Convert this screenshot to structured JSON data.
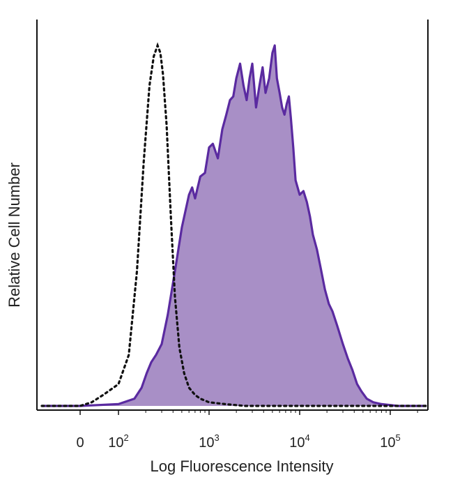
{
  "chart_data": {
    "type": "area",
    "title": "",
    "xlabel": "Log Fluorescence Intensity",
    "ylabel": "Relative Cell Number",
    "x_scale": "biexponential",
    "xlim": [
      -100,
      300000
    ],
    "ylim": [
      0,
      100
    ],
    "ticks": [
      {
        "value": 0,
        "base": "0",
        "exp": ""
      },
      {
        "value": 100,
        "base": "10",
        "exp": "2"
      },
      {
        "value": 1000,
        "base": "10",
        "exp": "3"
      },
      {
        "value": 10000,
        "base": "10",
        "exp": "4"
      },
      {
        "value": 100000,
        "base": "10",
        "exp": "5"
      }
    ],
    "grid": false,
    "series": [
      {
        "style": "dotted-outline",
        "color": "#111111",
        "x": [
          -100,
          0,
          30,
          60,
          100,
          130,
          160,
          190,
          220,
          245,
          270,
          290,
          310,
          340,
          380,
          420,
          470,
          530,
          600,
          700,
          800,
          1000,
          1500,
          2500,
          5000,
          10000,
          50000,
          300000
        ],
        "y": [
          0,
          0,
          1,
          3,
          6,
          14,
          37,
          67,
          88,
          96,
          99,
          97,
          91,
          77,
          51,
          30,
          16,
          9,
          5,
          3,
          2,
          1,
          0.5,
          0,
          0,
          0,
          0,
          0
        ]
      },
      {
        "style": "filled",
        "color": "#5a2aa0",
        "fill": "#a88fc6",
        "x": [
          -100,
          0,
          100,
          150,
          180,
          205,
          230,
          260,
          300,
          350,
          420,
          500,
          600,
          650,
          700,
          800,
          900,
          1000,
          1100,
          1250,
          1400,
          1550,
          1700,
          1850,
          2000,
          2200,
          2400,
          2600,
          2800,
          3000,
          3300,
          3600,
          3900,
          4200,
          4600,
          5000,
          5300,
          5600,
          6000,
          6400,
          6800,
          7200,
          7600,
          8000,
          8500,
          9000,
          10000,
          11000,
          12000,
          13000,
          14000,
          15500,
          17000,
          19000,
          21000,
          23000,
          26000,
          30000,
          34000,
          38000,
          43000,
          48000,
          55000,
          65000,
          80000,
          120000,
          300000
        ],
        "y": [
          0,
          0,
          0.5,
          2,
          5,
          9,
          12,
          14,
          17,
          25,
          37,
          49,
          58,
          60,
          57,
          63,
          64,
          71,
          72,
          68,
          76,
          80,
          84,
          85,
          90,
          94,
          88,
          84,
          90,
          94,
          82,
          88,
          93,
          86,
          90,
          97,
          99,
          90,
          86,
          82,
          80,
          83,
          85,
          79,
          71,
          62,
          58,
          59,
          56,
          52,
          47,
          43,
          38,
          32,
          28,
          26,
          22,
          17,
          13,
          10,
          6,
          4,
          2,
          1,
          0.5,
          0,
          0
        ]
      }
    ]
  }
}
